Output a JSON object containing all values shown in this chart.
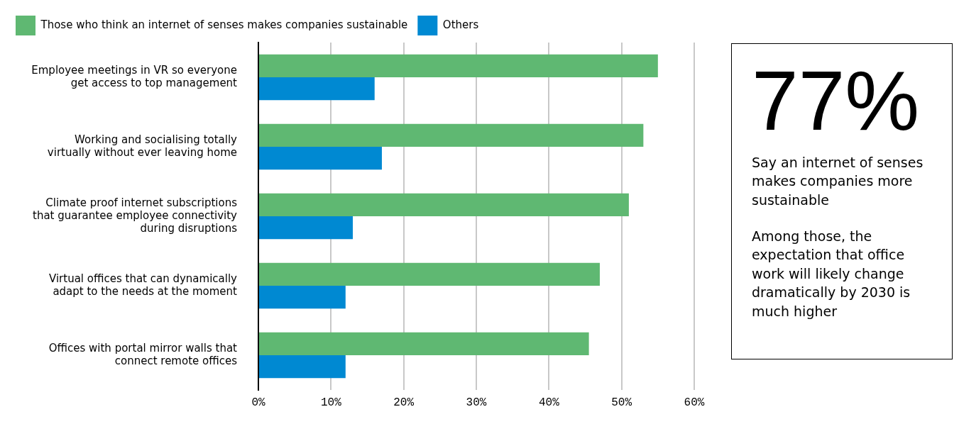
{
  "chart_data": [
    {
      "type": "bar",
      "orientation": "horizontal",
      "categories": [
        "Employee meetings in VR so everyone\nget access to top management",
        "Working and socialising totally\nvirtually without ever leaving home",
        "Climate proof internet subscriptions\nthat guarantee employee connectivity\nduring disruptions",
        "Virtual offices that can dynamically\nadapt to the needs at the moment",
        "Offices with portal mirror walls that\nconnect remote offices"
      ],
      "series": [
        {
          "name": "Those who think an internet of senses makes companies sustainable",
          "color": "#5fb872",
          "values": [
            55,
            53,
            51,
            47,
            45.5
          ]
        },
        {
          "name": "Others",
          "color": "#0089d2",
          "values": [
            16,
            17,
            13,
            12,
            12
          ]
        }
      ],
      "xlim": [
        0,
        60
      ],
      "xticks": [
        {
          "value": 0,
          "label": "0%"
        },
        {
          "value": 10,
          "label": "10%"
        },
        {
          "value": 20,
          "label": "20%"
        },
        {
          "value": 30,
          "label": "30%"
        },
        {
          "value": 40,
          "label": "40%"
        },
        {
          "value": 50,
          "label": "50%"
        },
        {
          "value": 60,
          "label": "60%"
        }
      ],
      "grid": "x",
      "legend": "top left"
    },
    {
      "type": "other",
      "title": "77%",
      "annotations": [
        "Say an internet of senses makes companies more sustainable",
        "Among those, the expectation that office work will likely change dramatically by 2030 is much higher"
      ]
    }
  ]
}
